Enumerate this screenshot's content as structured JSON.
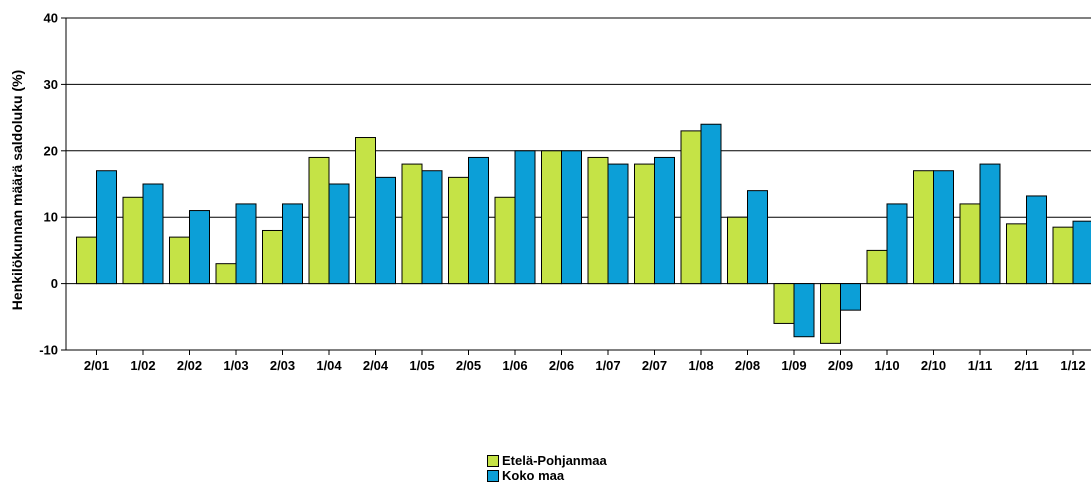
{
  "chart_data": {
    "type": "bar",
    "title": "",
    "xlabel": "",
    "ylabel": "Henkilökunnan määrä saldoluku (%)",
    "ylim": [
      -10,
      40
    ],
    "yticks": [
      -10,
      0,
      10,
      20,
      30,
      40
    ],
    "grid": true,
    "legend_position": "bottom-center",
    "categories": [
      "2/01",
      "1/02",
      "2/02",
      "1/03",
      "2/03",
      "1/04",
      "2/04",
      "1/05",
      "2/05",
      "1/06",
      "2/06",
      "1/07",
      "2/07",
      "1/08",
      "2/08",
      "1/09",
      "2/09",
      "1/10",
      "2/10",
      "1/11",
      "2/11",
      "1/12"
    ],
    "series": [
      {
        "name": "Etelä-Pohjanmaa",
        "color": "#c5e346",
        "values": [
          7,
          13,
          7,
          3,
          8,
          19,
          22,
          18,
          16,
          13,
          20,
          19,
          18,
          23,
          10,
          -6,
          -9,
          5,
          17,
          12,
          9,
          8.5
        ]
      },
      {
        "name": "Koko maa",
        "color": "#0c9fd7",
        "values": [
          17,
          15,
          11,
          12,
          12,
          15,
          16,
          17,
          19,
          20,
          20,
          18,
          19,
          24,
          14,
          -8,
          -4,
          12,
          17,
          18,
          13.2,
          9.4
        ]
      }
    ]
  }
}
